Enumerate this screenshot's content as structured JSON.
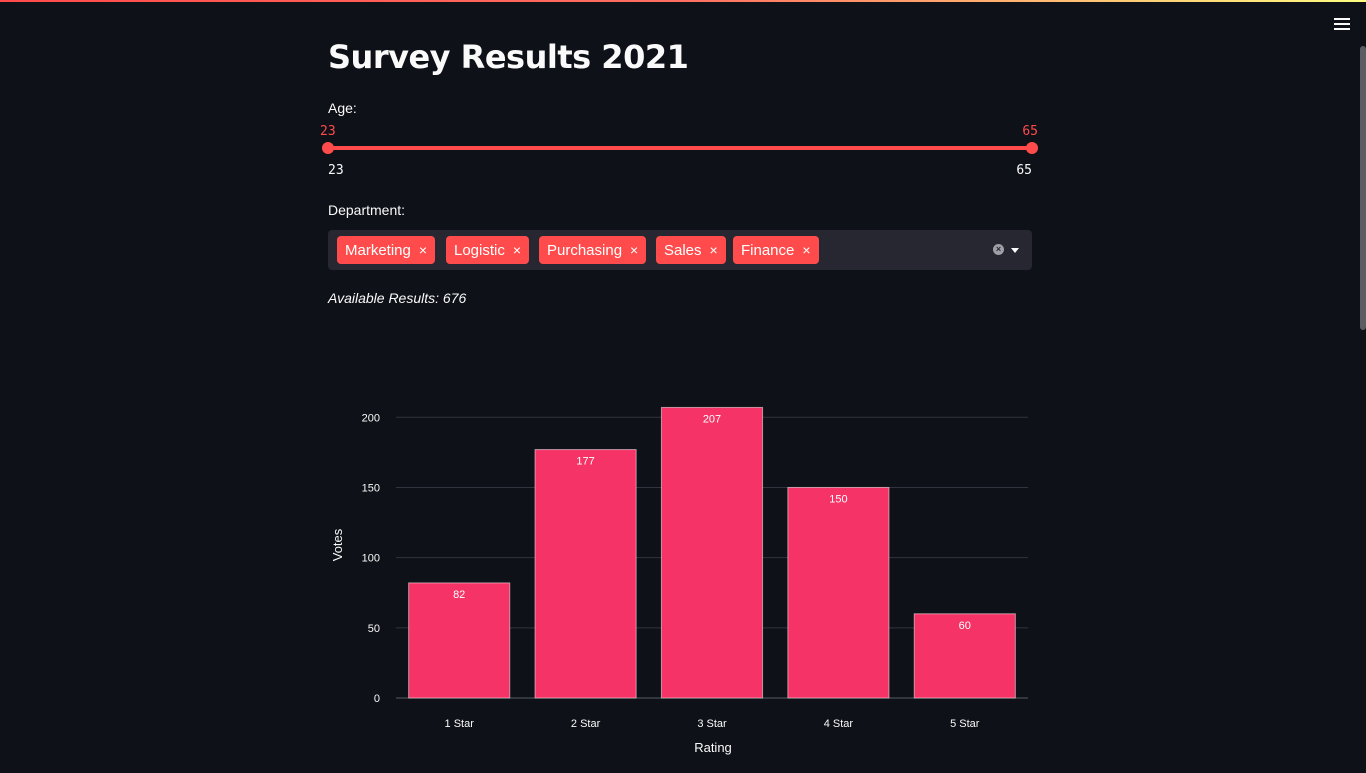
{
  "page": {
    "title": "Survey Results 2021"
  },
  "filters": {
    "age": {
      "label": "Age:",
      "min": 23,
      "max": 65,
      "selected_low": "23",
      "selected_high": "65",
      "range_low": "23",
      "range_high": "65"
    },
    "department": {
      "label": "Department:",
      "selected": [
        "Marketing",
        "Logistic",
        "Purchasing",
        "Sales",
        "Finance"
      ]
    }
  },
  "results_text": "Available Results: 676",
  "colors": {
    "accent": "#ff4b4b",
    "bar": "#f63366",
    "background": "#0e1117"
  },
  "icons": {
    "menu": "hamburger-icon",
    "clear": "clear-icon",
    "dropdown": "caret-down-icon",
    "remove": "close-icon"
  },
  "chart_data": {
    "type": "bar",
    "categories": [
      "1 Star",
      "2 Star",
      "3 Star",
      "4 Star",
      "5 Star"
    ],
    "values": [
      82,
      177,
      207,
      150,
      60
    ],
    "xlabel": "Rating",
    "ylabel": "Votes",
    "yticks": [
      0,
      50,
      100,
      150,
      200
    ],
    "ylim": [
      0,
      218
    ],
    "grid": true
  }
}
